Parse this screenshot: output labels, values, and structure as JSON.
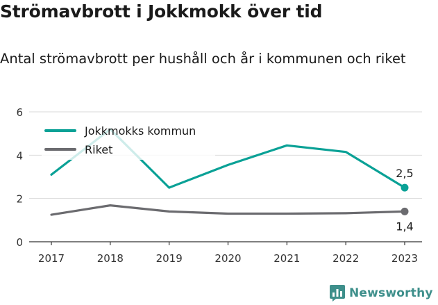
{
  "title": "Strömavbrott i Jokkmokk över tid",
  "subtitle": "Antal strömavbrott per hushåll och år i kommunen och riket",
  "brand": {
    "name": "Newsworthy"
  },
  "colors": {
    "jokkmokk": "#0aa196",
    "riket": "#6b6b6f",
    "grid": "#d9d9d9",
    "axis": "#333333"
  },
  "chart_data": {
    "type": "line",
    "x": [
      "2017",
      "2018",
      "2019",
      "2020",
      "2021",
      "2022",
      "2023"
    ],
    "ylim": [
      0,
      6
    ],
    "yticks": [
      "0",
      "2",
      "4",
      "6"
    ],
    "grid": true,
    "legend_position": "top-left",
    "series": [
      {
        "name": "Jokkmokks kommun",
        "values": [
          3.1,
          5.2,
          2.5,
          3.55,
          4.45,
          4.15,
          2.5
        ],
        "end_label": "2,5"
      },
      {
        "name": "Riket",
        "values": [
          1.25,
          1.68,
          1.4,
          1.3,
          1.3,
          1.32,
          1.4
        ],
        "end_label": "1,4"
      }
    ]
  }
}
